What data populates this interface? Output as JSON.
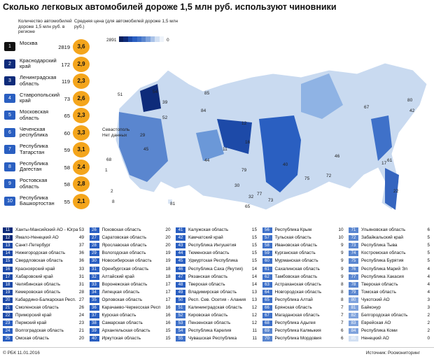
{
  "title": "Сколько легковых автомобилей дороже 1,5 млн руб. используют чиновники",
  "headers": {
    "count": "Количество автомобилей дороже 1,5 млн руб. в регионе",
    "price": "Средняя цена (для автомобилей дороже 1,5 млн руб.)",
    "legend_max": "2891",
    "legend_min": "0"
  },
  "top": [
    {
      "rank": 1,
      "name": "Москва",
      "count": 2819,
      "price": "3,6"
    },
    {
      "rank": 2,
      "name": "Краснодарский край",
      "count": 172,
      "price": "2,9"
    },
    {
      "rank": 3,
      "name": "Ленинградская область",
      "count": 119,
      "price": "2,3"
    },
    {
      "rank": 4,
      "name": "Ставропольский край",
      "count": 73,
      "price": "2,6"
    },
    {
      "rank": 5,
      "name": "Московская область",
      "count": 65,
      "price": "2,3"
    },
    {
      "rank": 6,
      "name": "Чеченская республика",
      "count": 60,
      "price": "3,3"
    },
    {
      "rank": 7,
      "name": "Республика Татарстан",
      "count": 59,
      "price": "3,1"
    },
    {
      "rank": 8,
      "name": "Республика Дагестан",
      "count": 58,
      "price": "2,4"
    },
    {
      "rank": 9,
      "name": "Ростовская область",
      "count": 58,
      "price": "2,8"
    },
    {
      "rank": 10,
      "name": "Республика Башкортостан",
      "count": 55,
      "price": "2,1"
    }
  ],
  "map_note": "Севастополь Нет данных",
  "map_labels": [
    "16",
    "11",
    "12",
    "46",
    "80",
    "67",
    "42",
    "17",
    "22",
    "84",
    "85",
    "39",
    "54",
    "51",
    "44",
    "79",
    "30",
    "32",
    "65",
    "77",
    "73",
    "75",
    "72",
    "40",
    "61",
    "81",
    "68",
    "29",
    "52",
    "1",
    "2",
    "8",
    "45"
  ],
  "columns": [
    [
      [
        11,
        "Ханты-Мансийский АО - Югра",
        53
      ],
      [
        12,
        "Ямало-Ненецкий АО",
        49
      ],
      [
        13,
        "Санкт-Петербург",
        37
      ],
      [
        14,
        "Нижегородская область",
        36
      ],
      [
        15,
        "Свердловская область",
        36
      ],
      [
        16,
        "Красноярский край",
        33
      ],
      [
        17,
        "Хабаровский край",
        31
      ],
      [
        18,
        "Челябинская область",
        31
      ],
      [
        19,
        "Кемеровская область",
        28
      ],
      [
        20,
        "Кабардино-Балкарская Респ.",
        27
      ],
      [
        21,
        "Смоленская область",
        26
      ],
      [
        22,
        "Приморский край",
        24
      ],
      [
        23,
        "Пермский край",
        23
      ],
      [
        24,
        "Волгоградская область",
        21
      ],
      [
        25,
        "Омская область",
        20
      ]
    ],
    [
      [
        26,
        "Псковская область",
        20
      ],
      [
        27,
        "Саратовская область",
        20
      ],
      [
        28,
        "Ярославская область",
        20
      ],
      [
        29,
        "Вологодская область",
        19
      ],
      [
        30,
        "Новосибирская область",
        19
      ],
      [
        31,
        "Оренбургская область",
        18
      ],
      [
        32,
        "Алтайский край",
        18
      ],
      [
        33,
        "Воронежская область",
        17
      ],
      [
        34,
        "Липецкая область",
        17
      ],
      [
        35,
        "Орловская область",
        17
      ],
      [
        36,
        "Карачаево-Черкесская Респ",
        16
      ],
      [
        37,
        "Курская область",
        16
      ],
      [
        38,
        "Самарская область",
        16
      ],
      [
        39,
        "Архангельская область",
        15
      ],
      [
        40,
        "Иркутская область",
        15
      ]
    ],
    [
      [
        41,
        "Калужская область",
        15
      ],
      [
        42,
        "Камчатский край",
        15
      ],
      [
        43,
        "Республика Ингушетия",
        15
      ],
      [
        44,
        "Тюменская область",
        15
      ],
      [
        45,
        "Удмуртская Республика",
        15
      ],
      [
        46,
        "Республика Саха (Якутия)",
        14
      ],
      [
        47,
        "Рязанская область",
        14
      ],
      [
        48,
        "Тверская область",
        14
      ],
      [
        49,
        "Владимирская область",
        13
      ],
      [
        50,
        "Респ. Сев. Осетия - Алания",
        13
      ],
      [
        51,
        "Калининградская область",
        12
      ],
      [
        52,
        "Кировская область",
        12
      ],
      [
        53,
        "Пензенская область",
        12
      ],
      [
        54,
        "Республика Карелия",
        11
      ],
      [
        55,
        "Чувашская Республика",
        11
      ]
    ],
    [
      [
        56,
        "Республика Крым",
        10
      ],
      [
        57,
        "Тульская область",
        10
      ],
      [
        58,
        "Ивановская область",
        9
      ],
      [
        59,
        "Курганская область",
        9
      ],
      [
        60,
        "Мурманская область",
        9
      ],
      [
        61,
        "Сахалинская область",
        9
      ],
      [
        62,
        "Тамбовская область",
        9
      ],
      [
        63,
        "Астраханская область",
        8
      ],
      [
        64,
        "Новгородская область",
        8
      ],
      [
        65,
        "Республика Алтай",
        8
      ],
      [
        66,
        "Брянская область",
        7
      ],
      [
        67,
        "Магаданская область",
        7
      ],
      [
        68,
        "Республика Адыгея",
        7
      ],
      [
        69,
        "Республика Калмыкия",
        6
      ],
      [
        70,
        "Республика Мордовия",
        6
      ]
    ],
    [
      [
        71,
        "Ульяновская область",
        6
      ],
      [
        72,
        "Забайкальский край",
        5
      ],
      [
        73,
        "Республика Тыва",
        5
      ],
      [
        74,
        "Костромская область",
        5
      ],
      [
        75,
        "Республика Бурятия",
        5
      ],
      [
        76,
        "Республика Марий Эл",
        4
      ],
      [
        77,
        "Республика Хакасия",
        4
      ],
      [
        78,
        "Тверская область",
        4
      ],
      [
        79,
        "Томская область",
        4
      ],
      [
        80,
        "Чукотский АО",
        3
      ],
      [
        81,
        "Байконур",
        3
      ],
      [
        82,
        "Белгородская область",
        2
      ],
      [
        83,
        "Еврейская АО",
        2
      ],
      [
        84,
        "Республика Коми",
        2
      ],
      [
        85,
        "Ненецкий АО",
        0
      ]
    ]
  ],
  "footer": {
    "left": "© РБК 11.01.2016",
    "right": "Источник: Росмониторинг"
  }
}
